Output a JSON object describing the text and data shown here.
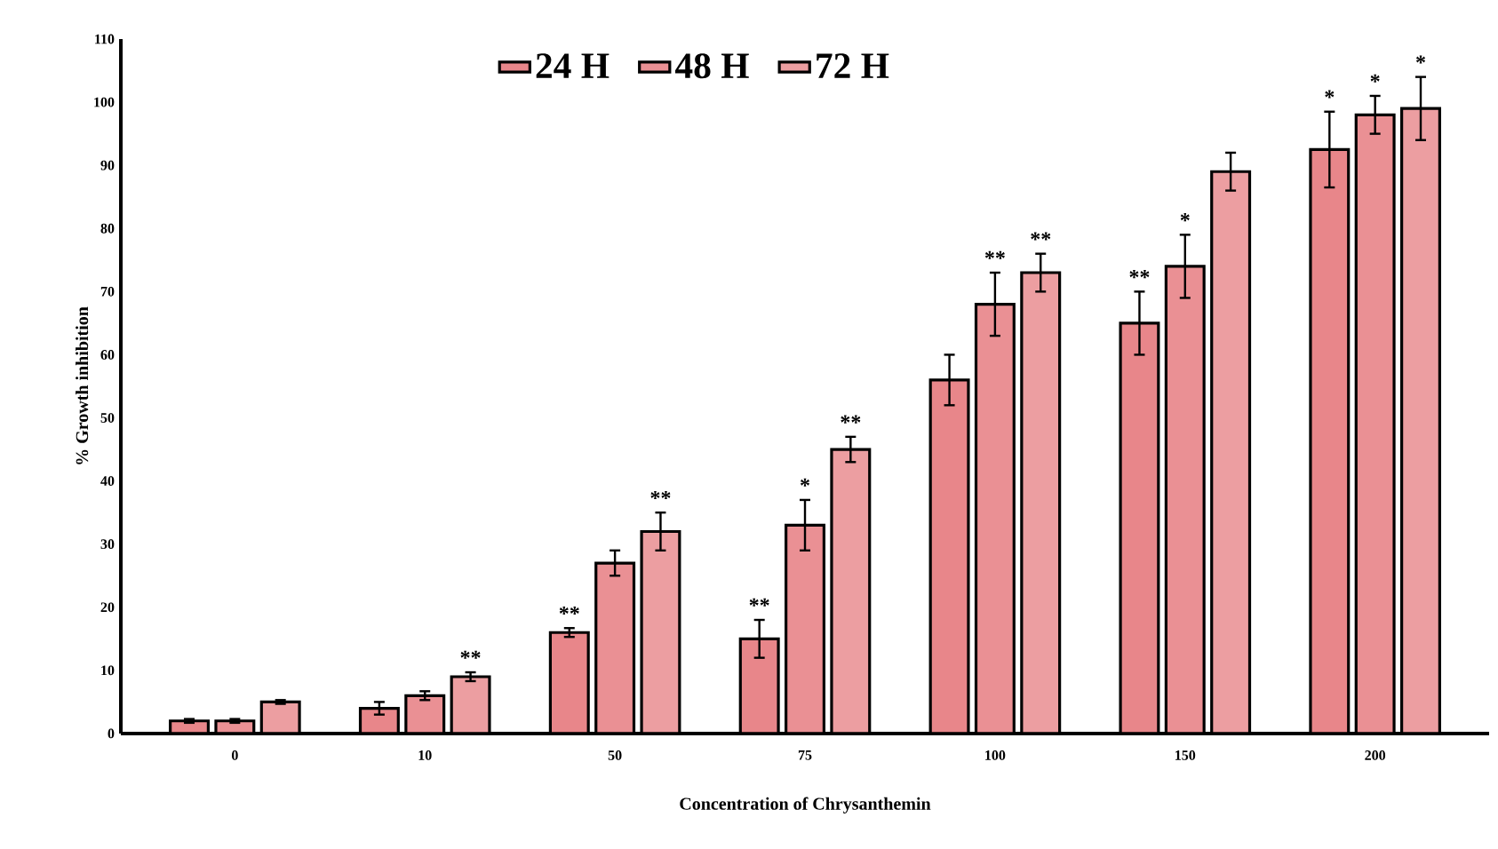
{
  "chart_data": {
    "type": "bar",
    "xlabel": "Concentration  of Chrysanthemin",
    "ylabel": "% Growth inhibition",
    "categories": [
      "0",
      "10",
      "50",
      "75",
      "100",
      "150",
      "200"
    ],
    "series": [
      {
        "name": "24 H",
        "color": "#e8868a",
        "values": [
          2,
          4,
          16,
          15,
          56,
          65,
          92.5
        ],
        "errors": [
          0.3,
          1,
          0.7,
          3,
          4,
          5,
          6
        ],
        "value_labels": [
          null,
          null,
          "**",
          "**",
          null,
          "**",
          "*"
        ]
      },
      {
        "name": "48 H",
        "color": "#ea9094",
        "values": [
          2,
          6,
          27,
          33,
          68,
          74,
          98
        ],
        "errors": [
          0.3,
          0.7,
          2,
          4,
          5,
          5,
          3
        ],
        "value_labels": [
          null,
          null,
          null,
          "*",
          "**",
          "*",
          "*"
        ]
      },
      {
        "name": "72 H",
        "color": "#ec9ea1",
        "values": [
          5,
          9,
          32,
          45,
          73,
          89,
          99
        ],
        "errors": [
          0.3,
          0.7,
          3,
          2,
          3,
          3,
          5
        ],
        "value_labels": [
          null,
          "**",
          "**",
          "**",
          "**",
          null,
          "*"
        ]
      }
    ],
    "ylim": [
      0,
      110
    ],
    "yticks": [
      0,
      10,
      20,
      30,
      40,
      50,
      60,
      70,
      80,
      90,
      100,
      110
    ],
    "legend": "top"
  }
}
